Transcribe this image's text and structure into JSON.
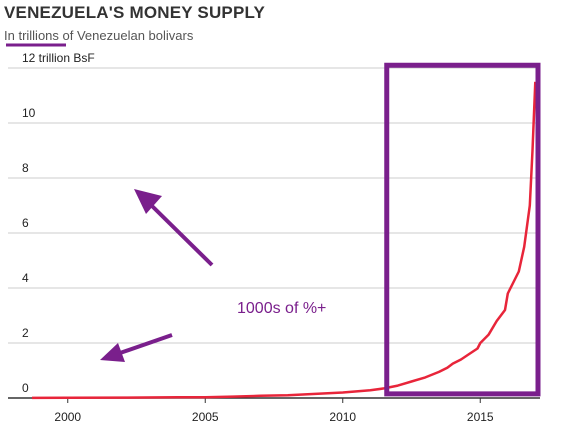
{
  "chart_data": {
    "type": "line",
    "title": "VENEZUELA'S MONEY SUPPLY",
    "subtitle": "In trillions of Venezuelan bolivars",
    "ylabel": "",
    "xlabel": "",
    "ylim": [
      0,
      12
    ],
    "xlim": [
      1998.7,
      2017.1
    ],
    "yticks": [
      {
        "value": 0,
        "label": "0"
      },
      {
        "value": 2,
        "label": "2"
      },
      {
        "value": 4,
        "label": "4"
      },
      {
        "value": 6,
        "label": "6"
      },
      {
        "value": 8,
        "label": "8"
      },
      {
        "value": 10,
        "label": "10"
      },
      {
        "value": 12,
        "label": "12 trillion BsF"
      }
    ],
    "xticks": [
      {
        "value": 2000,
        "label": "2000"
      },
      {
        "value": 2005,
        "label": "2005"
      },
      {
        "value": 2010,
        "label": "2010"
      },
      {
        "value": 2015,
        "label": "2015"
      }
    ],
    "grid": "horizontal",
    "series": [
      {
        "color": "#e8253a",
        "x": [
          1998.7,
          2000,
          2002,
          2004,
          2005,
          2006,
          2007,
          2008,
          2009,
          2010,
          2011,
          2011.5,
          2012,
          2012.5,
          2013,
          2013.5,
          2013.8,
          2014,
          2014.3,
          2014.6,
          2014.9,
          2015,
          2015.3,
          2015.6,
          2015.9,
          2016,
          2016.2,
          2016.4,
          2016.6,
          2016.8,
          2016.9,
          2017
        ],
        "y": [
          0.005,
          0.01,
          0.015,
          0.025,
          0.03,
          0.05,
          0.08,
          0.1,
          0.15,
          0.2,
          0.28,
          0.35,
          0.45,
          0.6,
          0.75,
          0.95,
          1.1,
          1.25,
          1.4,
          1.6,
          1.8,
          2.0,
          2.3,
          2.8,
          3.2,
          3.8,
          4.2,
          4.6,
          5.5,
          7.0,
          9.0,
          11.5
        ]
      }
    ],
    "annotations": [
      {
        "text": "1000s of %+",
        "color": "#7a1f8c"
      }
    ],
    "highlight": {
      "x_range": [
        2011.6,
        2017.1
      ],
      "y_range": [
        0.15,
        12.1
      ],
      "color": "#7a1f8c"
    }
  }
}
